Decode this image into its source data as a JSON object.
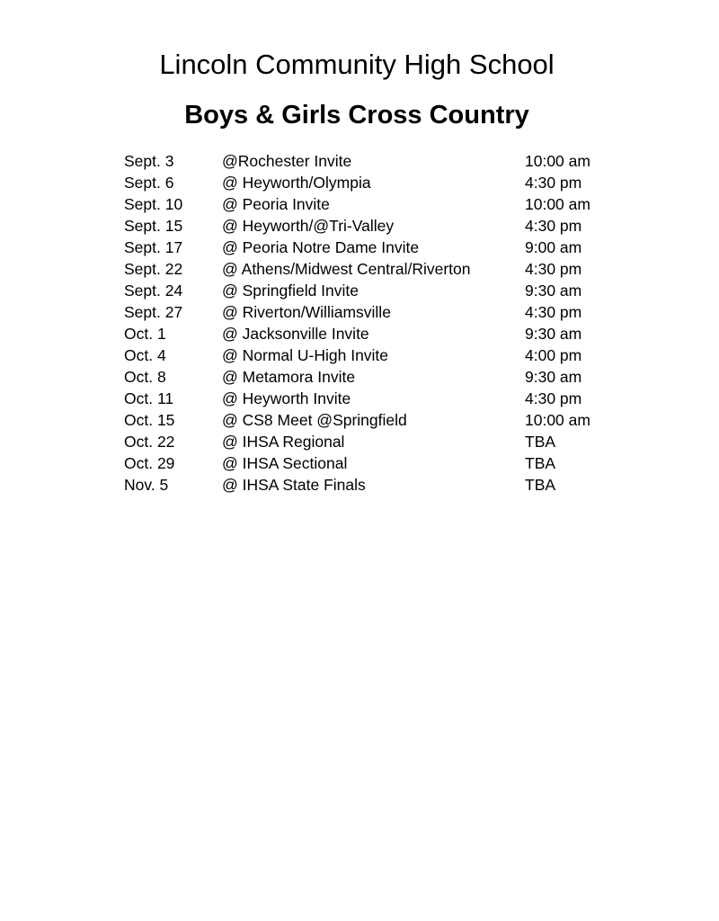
{
  "document": {
    "title": "Lincoln Community High School",
    "subtitle": "Boys & Girls Cross Country",
    "schedule": [
      {
        "date": "Sept. 3",
        "event": "@Rochester Invite",
        "time": "10:00 am"
      },
      {
        "date": "Sept. 6",
        "event": "@ Heyworth/Olympia",
        "time": "4:30 pm"
      },
      {
        "date": "Sept. 10",
        "event": "@ Peoria Invite",
        "time": "10:00 am"
      },
      {
        "date": "Sept. 15",
        "event": "@ Heyworth/@Tri-Valley",
        "time": "4:30 pm"
      },
      {
        "date": "Sept. 17",
        "event": "@ Peoria Notre Dame Invite",
        "time": "9:00 am"
      },
      {
        "date": "Sept. 22",
        "event": "@ Athens/Midwest Central/Riverton",
        "time": "4:30 pm"
      },
      {
        "date": "Sept. 24",
        "event": "@ Springfield Invite",
        "time": "9:30 am"
      },
      {
        "date": "Sept. 27",
        "event": "@ Riverton/Williamsville",
        "time": "4:30 pm"
      },
      {
        "date": "Oct. 1",
        "event": "@ Jacksonville Invite",
        "time": "9:30 am"
      },
      {
        "date": "Oct. 4",
        "event": "@ Normal U-High Invite",
        "time": "4:00 pm"
      },
      {
        "date": "Oct. 8",
        "event": "@ Metamora Invite",
        "time": "9:30 am"
      },
      {
        "date": "Oct. 11",
        "event": "@ Heyworth Invite",
        "time": "4:30 pm"
      },
      {
        "date": "Oct. 15",
        "event": "@ CS8 Meet @Springfield",
        "time": "10:00 am"
      },
      {
        "date": "Oct. 22",
        "event": "@ IHSA Regional",
        "time": "TBA"
      },
      {
        "date": "Oct. 29",
        "event": "@ IHSA Sectional",
        "time": "TBA"
      },
      {
        "date": "Nov. 5",
        "event": "@ IHSA State Finals",
        "time": "TBA"
      }
    ]
  }
}
